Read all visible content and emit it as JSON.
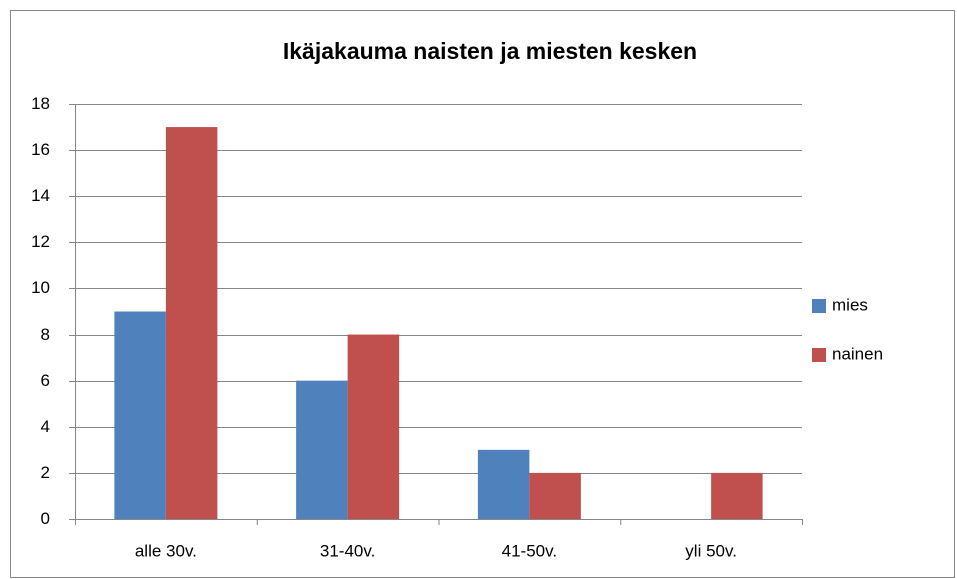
{
  "chart_data": {
    "type": "bar",
    "title": "Ikäjakauma naisten ja miesten kesken",
    "categories": [
      "alle 30v.",
      "31-40v.",
      "41-50v.",
      "yli 50v."
    ],
    "series": [
      {
        "name": "mies",
        "color": "#4f81bd",
        "values": [
          9,
          6,
          3,
          0
        ]
      },
      {
        "name": "nainen",
        "color": "#c0504d",
        "values": [
          17,
          8,
          2,
          2
        ]
      }
    ],
    "ylim": [
      0,
      18
    ],
    "yticks": [
      0,
      2,
      4,
      6,
      8,
      10,
      12,
      14,
      16,
      18
    ],
    "grid": true,
    "legend": "right"
  }
}
